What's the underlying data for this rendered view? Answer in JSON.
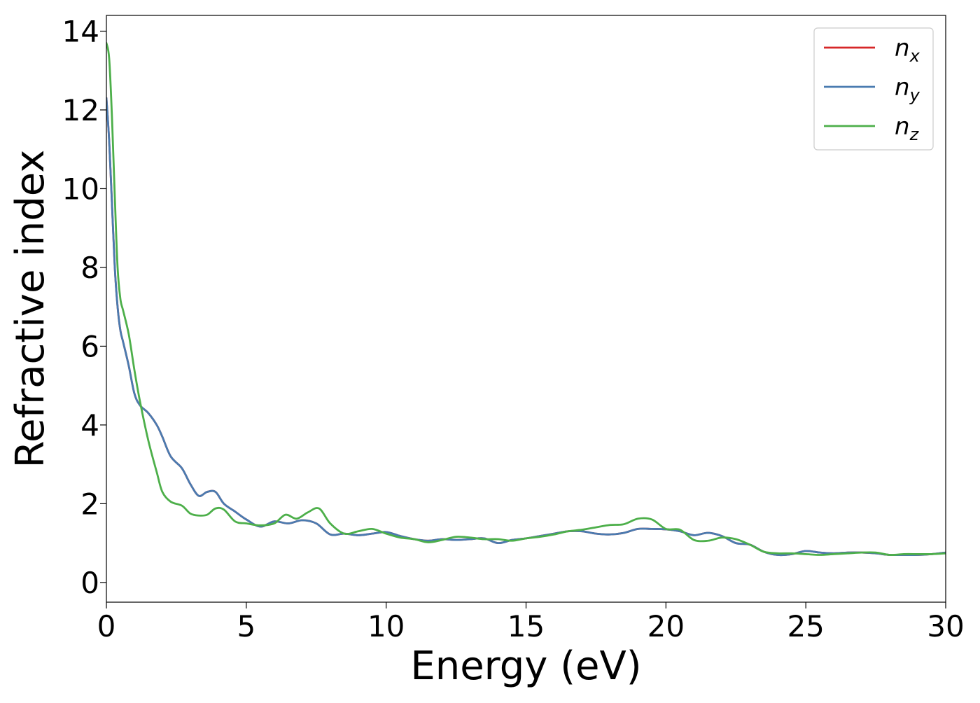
{
  "chart_data": {
    "type": "line",
    "title": "",
    "xlabel": "Energy (eV)",
    "ylabel": "Refractive index",
    "xlim": [
      0,
      30
    ],
    "ylim": [
      -0.5,
      14.4
    ],
    "x_ticks": [
      0,
      5,
      10,
      15,
      20,
      25,
      30
    ],
    "y_ticks": [
      0,
      2,
      4,
      6,
      8,
      10,
      12,
      14
    ],
    "grid": false,
    "legend_position": "top-right",
    "series": [
      {
        "name": "n_x",
        "label_main": "n",
        "label_sub": "x",
        "color": "#d62728",
        "x": [
          0,
          0.1,
          0.2,
          0.3,
          0.4,
          0.5,
          0.6,
          0.8,
          1.0,
          1.2,
          1.5,
          1.8,
          2.0,
          2.3,
          2.7,
          3.0,
          3.3,
          3.6,
          3.9,
          4.2,
          4.6,
          5.0,
          5.5,
          6.0,
          6.5,
          7.0,
          7.5,
          8.0,
          8.5,
          9.0,
          9.5,
          10.0,
          10.5,
          11.0,
          11.5,
          12.0,
          12.5,
          13.0,
          13.5,
          14.0,
          14.5,
          15.0,
          15.5,
          16.0,
          16.5,
          17.0,
          17.5,
          18.0,
          18.5,
          19.0,
          19.5,
          20.0,
          20.5,
          21.0,
          21.5,
          22.0,
          22.5,
          23.0,
          23.5,
          24.0,
          24.5,
          25.0,
          25.5,
          26.0,
          26.5,
          27.0,
          27.5,
          28.0,
          28.5,
          29.0,
          29.5,
          30.0
        ],
        "y": [
          12.3,
          11.2,
          9.6,
          8.0,
          7.0,
          6.4,
          6.1,
          5.5,
          4.8,
          4.5,
          4.3,
          4.0,
          3.7,
          3.2,
          2.9,
          2.5,
          2.2,
          2.3,
          2.3,
          2.0,
          1.8,
          1.6,
          1.42,
          1.55,
          1.5,
          1.58,
          1.5,
          1.22,
          1.24,
          1.2,
          1.24,
          1.28,
          1.18,
          1.1,
          1.06,
          1.1,
          1.08,
          1.1,
          1.12,
          1.0,
          1.08,
          1.12,
          1.18,
          1.24,
          1.3,
          1.3,
          1.24,
          1.22,
          1.26,
          1.36,
          1.36,
          1.35,
          1.3,
          1.2,
          1.26,
          1.18,
          1.0,
          0.96,
          0.78,
          0.7,
          0.72,
          0.8,
          0.76,
          0.74,
          0.76,
          0.76,
          0.74,
          0.7,
          0.7,
          0.7,
          0.72,
          0.76
        ]
      },
      {
        "name": "n_y",
        "label_main": "n",
        "label_sub": "y",
        "color": "#4a7bb0",
        "x": [
          0,
          0.1,
          0.2,
          0.3,
          0.4,
          0.5,
          0.6,
          0.8,
          1.0,
          1.2,
          1.5,
          1.8,
          2.0,
          2.3,
          2.7,
          3.0,
          3.3,
          3.6,
          3.9,
          4.2,
          4.6,
          5.0,
          5.5,
          6.0,
          6.5,
          7.0,
          7.5,
          8.0,
          8.5,
          9.0,
          9.5,
          10.0,
          10.5,
          11.0,
          11.5,
          12.0,
          12.5,
          13.0,
          13.5,
          14.0,
          14.5,
          15.0,
          15.5,
          16.0,
          16.5,
          17.0,
          17.5,
          18.0,
          18.5,
          19.0,
          19.5,
          20.0,
          20.5,
          21.0,
          21.5,
          22.0,
          22.5,
          23.0,
          23.5,
          24.0,
          24.5,
          25.0,
          25.5,
          26.0,
          26.5,
          27.0,
          27.5,
          28.0,
          28.5,
          29.0,
          29.5,
          30.0
        ],
        "y": [
          12.3,
          11.2,
          9.6,
          8.0,
          7.0,
          6.4,
          6.1,
          5.5,
          4.8,
          4.5,
          4.3,
          4.0,
          3.7,
          3.2,
          2.9,
          2.5,
          2.2,
          2.3,
          2.3,
          2.0,
          1.8,
          1.6,
          1.42,
          1.55,
          1.5,
          1.58,
          1.5,
          1.22,
          1.24,
          1.2,
          1.24,
          1.28,
          1.18,
          1.1,
          1.06,
          1.1,
          1.08,
          1.1,
          1.12,
          1.0,
          1.08,
          1.12,
          1.18,
          1.24,
          1.3,
          1.3,
          1.24,
          1.22,
          1.26,
          1.36,
          1.36,
          1.35,
          1.3,
          1.2,
          1.26,
          1.18,
          1.0,
          0.96,
          0.78,
          0.7,
          0.72,
          0.8,
          0.76,
          0.74,
          0.76,
          0.76,
          0.74,
          0.7,
          0.7,
          0.7,
          0.72,
          0.76
        ]
      },
      {
        "name": "n_z",
        "label_main": "n",
        "label_sub": "z",
        "color": "#4daf4a",
        "x": [
          0,
          0.1,
          0.2,
          0.3,
          0.4,
          0.5,
          0.6,
          0.8,
          1.0,
          1.2,
          1.5,
          1.8,
          2.0,
          2.3,
          2.7,
          3.0,
          3.3,
          3.6,
          3.9,
          4.2,
          4.6,
          5.0,
          5.5,
          6.0,
          6.4,
          6.8,
          7.2,
          7.6,
          8.0,
          8.5,
          9.0,
          9.5,
          10.0,
          10.5,
          11.0,
          11.5,
          12.0,
          12.5,
          13.0,
          13.5,
          14.0,
          14.5,
          15.0,
          15.5,
          16.0,
          16.5,
          17.0,
          17.5,
          18.0,
          18.5,
          19.0,
          19.5,
          20.0,
          20.5,
          21.0,
          21.5,
          22.0,
          22.5,
          23.0,
          23.5,
          24.0,
          24.5,
          25.0,
          25.5,
          26.0,
          26.5,
          27.0,
          27.5,
          28.0,
          28.5,
          29.0,
          29.5,
          30.0
        ],
        "y": [
          13.7,
          13.3,
          11.8,
          9.8,
          8.0,
          7.2,
          6.9,
          6.3,
          5.4,
          4.6,
          3.6,
          2.8,
          2.3,
          2.05,
          1.95,
          1.75,
          1.7,
          1.72,
          1.88,
          1.85,
          1.55,
          1.5,
          1.45,
          1.5,
          1.72,
          1.62,
          1.78,
          1.88,
          1.5,
          1.24,
          1.3,
          1.36,
          1.24,
          1.14,
          1.1,
          1.02,
          1.08,
          1.16,
          1.14,
          1.1,
          1.1,
          1.06,
          1.12,
          1.16,
          1.22,
          1.3,
          1.34,
          1.4,
          1.46,
          1.48,
          1.62,
          1.6,
          1.36,
          1.34,
          1.08,
          1.06,
          1.14,
          1.1,
          0.96,
          0.78,
          0.74,
          0.74,
          0.72,
          0.7,
          0.72,
          0.74,
          0.76,
          0.76,
          0.7,
          0.72,
          0.72,
          0.72,
          0.74
        ]
      }
    ]
  }
}
